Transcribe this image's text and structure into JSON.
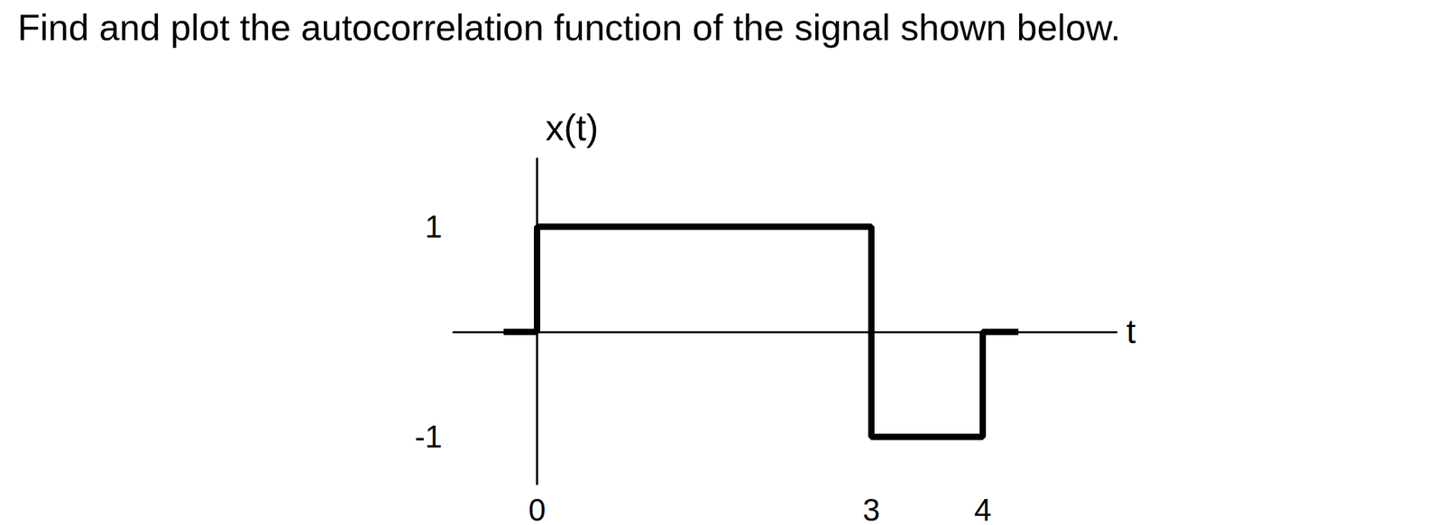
{
  "chart_data": {
    "type": "line",
    "title": "Find and plot the autocorrelation function of the signal shown below.",
    "xlabel": "t",
    "ylabel": "x(t)",
    "x": [
      -0.3,
      0,
      0,
      3,
      3,
      4,
      4,
      4.32
    ],
    "values": [
      0,
      0,
      1,
      1,
      -1,
      -1,
      0,
      0
    ],
    "color": "#000000",
    "xlim": [
      -0.75,
      5.2
    ],
    "xticks": [
      0,
      3,
      4
    ],
    "ylim": [
      -1.45,
      1.65
    ],
    "yticks": [
      -1,
      1
    ],
    "grid": false
  }
}
